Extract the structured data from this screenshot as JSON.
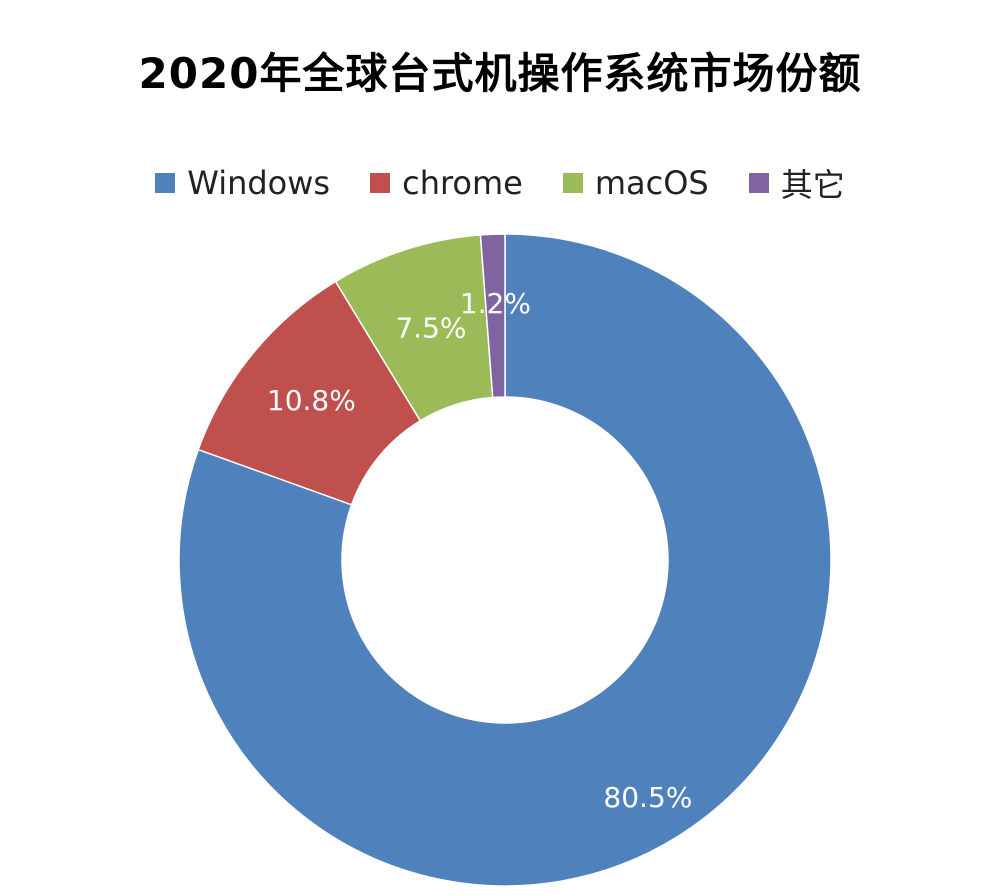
{
  "chart_data": {
    "type": "pie",
    "variant": "donut",
    "title": "2020年全球台式机操作系统市场份额",
    "legend_position": "top",
    "slices": [
      {
        "label": "Windows",
        "value": 80.5,
        "display": "80.5%",
        "color": "#4f81bd"
      },
      {
        "label": "chrome",
        "value": 10.8,
        "display": "10.8%",
        "color": "#c0504d"
      },
      {
        "label": "macOS",
        "value": 7.5,
        "display": "7.5%",
        "color": "#9bbb59"
      },
      {
        "label": "其它",
        "value": 1.2,
        "display": "1.2%",
        "color": "#8064a2"
      }
    ]
  }
}
